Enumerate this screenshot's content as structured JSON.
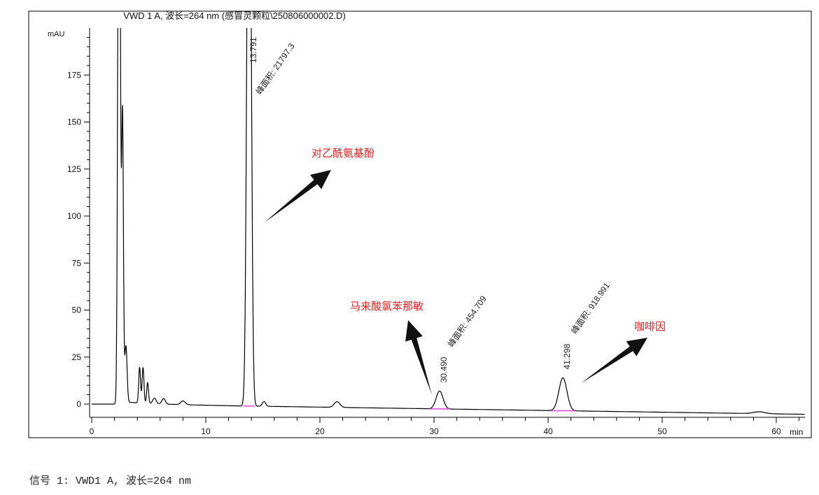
{
  "chart_data": {
    "type": "line",
    "title": "VWD 1 A, 波长=264 nm (感冒灵颗粒\\250806000002.D)",
    "ylabel": "mAU",
    "xlabel": "min",
    "xlim": [
      0,
      62.5
    ],
    "ylim": [
      -7,
      200
    ],
    "xticks": [
      0,
      10,
      20,
      30,
      40,
      50,
      60
    ],
    "yticks": [
      0,
      25,
      50,
      75,
      100,
      125,
      150,
      175
    ],
    "grid": false,
    "peaks": [
      {
        "rt": 2.4,
        "height": 400,
        "width": 0.1
      },
      {
        "rt": 2.7,
        "height": 153,
        "width": 0.08
      },
      {
        "rt": 3.0,
        "height": 30,
        "width": 0.1
      },
      {
        "rt": 4.2,
        "height": 19,
        "width": 0.08
      },
      {
        "rt": 4.5,
        "height": 19,
        "width": 0.08
      },
      {
        "rt": 4.9,
        "height": 11,
        "width": 0.08
      },
      {
        "rt": 5.5,
        "height": 3,
        "width": 0.15
      },
      {
        "rt": 6.3,
        "height": 3,
        "width": 0.15
      },
      {
        "rt": 8.0,
        "height": 2,
        "width": 0.2
      },
      {
        "rt": 13.791,
        "height": 400,
        "width": 0.17,
        "rt_label": "13.791",
        "area_label": "峰面积: 21797.3"
      },
      {
        "rt": 15.1,
        "height": 2.5,
        "width": 0.15
      },
      {
        "rt": 21.5,
        "height": 3,
        "width": 0.25
      },
      {
        "rt": 30.49,
        "height": 9.5,
        "width": 0.3,
        "rt_label": "30.490",
        "area_label": "峰面积: 454.709"
      },
      {
        "rt": 41.298,
        "height": 17.5,
        "width": 0.35,
        "rt_label": "41.298",
        "area_label": "峰面积: 918.991"
      },
      {
        "rt": 58.5,
        "height": 1,
        "width": 0.5
      }
    ],
    "annotations": [
      {
        "text": "对乙酰氨基酚",
        "color": "#e02020"
      },
      {
        "text": "马来酸氯苯那敏",
        "color": "#e02020"
      },
      {
        "text": "咖啡因",
        "color": "#e02020"
      }
    ],
    "baseline_color": "#e040e0"
  },
  "caption": "信号 1: VWD1 A, 波长=264 nm"
}
